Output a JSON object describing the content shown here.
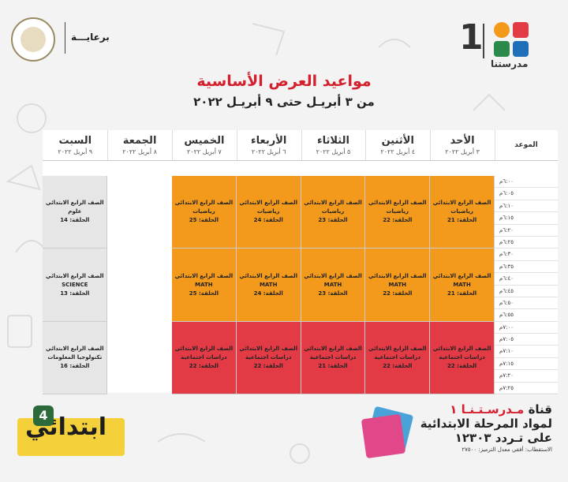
{
  "header": {
    "channel_number": "1",
    "brand": "مدرستنا",
    "sponsor": "برعايـــة",
    "title": "مواعيد العرض الأساسية",
    "subtitle": "من ٣ أبريـل حتى ٩ أبريـل ٢٠٢٢"
  },
  "schedule": {
    "time_header": "الموعد",
    "days": [
      {
        "name": "الأحد",
        "date": "٣ أبريل ٢٠٢٢"
      },
      {
        "name": "الأثنين",
        "date": "٤ أبريل ٢٠٢٢"
      },
      {
        "name": "الثلاثاء",
        "date": "٥ أبريل ٢٠٢٢"
      },
      {
        "name": "الأربعاء",
        "date": "٦ أبريل ٢٠٢٢"
      },
      {
        "name": "الخميس",
        "date": "٧ أبريل ٢٠٢٢"
      },
      {
        "name": "الجمعة",
        "date": "٨ أبريل ٢٠٢٢"
      },
      {
        "name": "السبت",
        "date": "٩ أبريل ٢٠٢٢"
      }
    ],
    "times": [
      "٦:٠٠م",
      "٦:٠٥م",
      "٦:١٠م",
      "٦:١٥م",
      "٦:٢٠م",
      "٦:٢٥م",
      "٦:٣٠م",
      "٦:٣٥م",
      "٦:٤٠م",
      "٦:٤٥م",
      "٦:٥٠م",
      "٦:٥٥م",
      "٧:٠٠م",
      "٧:٠٥م",
      "٧:١٠م",
      "٧:١٥م",
      "٧:٢٠م",
      "٧:٢٥م"
    ],
    "slots": [
      {
        "color": "#f39a1c",
        "cells": [
          [
            "الصف الرابع الابتدائي",
            "رياضيات",
            "الحلقة: 21"
          ],
          [
            "الصف الرابع الابتدائي",
            "رياضيات",
            "الحلقة: 22"
          ],
          [
            "الصف الرابع الابتدائي",
            "رياضيات",
            "الحلقة: 23"
          ],
          [
            "الصف الرابع الابتدائي",
            "رياضيات",
            "الحلقة: 24"
          ],
          [
            "الصف الرابع الابتدائي",
            "رياضيات",
            "الحلقة: 25"
          ],
          null,
          [
            "الصف الرابع الابتدائي",
            "علوم",
            "الحلقة: 14"
          ]
        ]
      },
      {
        "color": "#f39a1c",
        "cells": [
          [
            "الصف الرابع الابتدائي",
            "MATH",
            "الحلقة: 21"
          ],
          [
            "الصف الرابع الابتدائي",
            "MATH",
            "الحلقة: 22"
          ],
          [
            "الصف الرابع الابتدائي",
            "MATH",
            "الحلقة: 23"
          ],
          [
            "الصف الرابع الابتدائي",
            "MATH",
            "الحلقة: 24"
          ],
          [
            "الصف الرابع الابتدائي",
            "MATH",
            "الحلقة: 25"
          ],
          null,
          [
            "الصف الرابع الابتدائي",
            "SCIENCE",
            "الحلقة: 13"
          ]
        ]
      },
      {
        "color": "#e23b45",
        "cells": [
          [
            "الصف الرابع الابتدائي",
            "دراسات اجتماعية",
            "الحلقة: 22"
          ],
          [
            "الصف الرابع الابتدائي",
            "دراسات اجتماعية",
            "الحلقة: 22"
          ],
          [
            "الصف الرابع الابتدائي",
            "دراسات اجتماعية",
            "الحلقة: 21"
          ],
          [
            "الصف الرابع الابتدائي",
            "دراسات اجتماعية",
            "الحلقة: 22"
          ],
          [
            "الصف الرابع الابتدائي",
            "دراسات اجتماعية",
            "الحلقة: 22"
          ],
          null,
          [
            "الصف الرابع الابتدائي",
            "تكنولوجيا المعلومات",
            "الحلقة: 16"
          ]
        ]
      }
    ],
    "saturday_color": "#e6e6e6"
  },
  "footer": {
    "program": "ابتدائي",
    "grade_badge": "4",
    "channel_line_prefix": "قناة ",
    "channel_line_name": "مـدرسـتـنـا ١",
    "line2": "لمواد المرحلة الابتدائية",
    "line3": "على تـردد ١٢٣٠٣",
    "reception": "الاستقطاب: أفقي معدل الترميز: ٢٧٥٠٠"
  },
  "colors": {
    "accent_red": "#d4202e",
    "orange": "#f39a1c",
    "red_block": "#e23b45"
  }
}
